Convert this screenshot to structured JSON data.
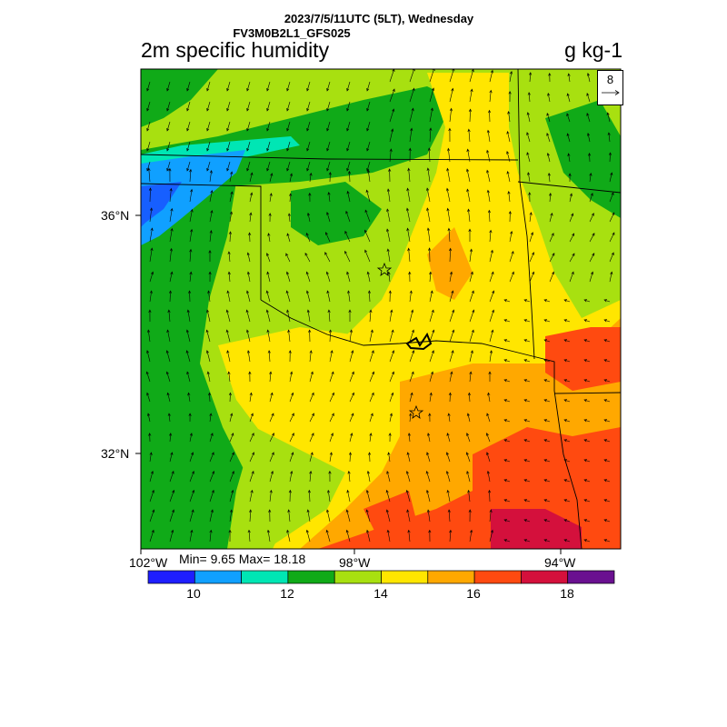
{
  "header": {
    "line1": "2023/7/5/11UTC (5LT), Wednesday",
    "line2": "FV3M0B2L1_GFS025"
  },
  "map": {
    "variable_title": "2m specific humidity",
    "units": "g kg-1",
    "stats": "Min= 9.65 Max= 18.18",
    "vector_reference": "8",
    "lon_labels": [
      "102°W",
      "98°W",
      "94°W"
    ],
    "lat_labels": [
      "36°N",
      "32°N"
    ],
    "markers": [
      "star-okc",
      "star-dfw"
    ]
  },
  "colorbar": {
    "colors": [
      "#1e1eff",
      "#10a0ff",
      "#00e6b4",
      "#10aa18",
      "#a8e010",
      "#ffe600",
      "#ffa800",
      "#ff4a10",
      "#d4103c",
      "#6a1090"
    ],
    "labels": [
      "10",
      "12",
      "14",
      "16",
      "18"
    ]
  }
}
